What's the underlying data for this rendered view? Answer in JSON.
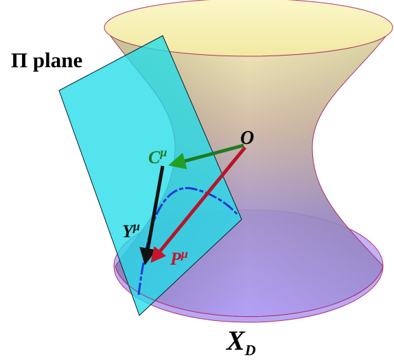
{
  "labels": {
    "plane": "Π plane",
    "origin": "O",
    "c_base": "C",
    "y_base": "Y",
    "p_base": "P",
    "mu": "μ",
    "xd_base": "X",
    "xd_sub": "D"
  },
  "colors": {
    "plane_fill": "#22dde8",
    "plane_stroke": "#0a1a2a",
    "surface_top": "#f6f0a8",
    "surface_bottom": "#a88ef2",
    "surface_stroke": "#b0306a",
    "c_vector": "#1f7a1f",
    "y_vector": "#111111",
    "p_vector": "#b81428",
    "curve": "#1638d8",
    "text": "#000000"
  }
}
